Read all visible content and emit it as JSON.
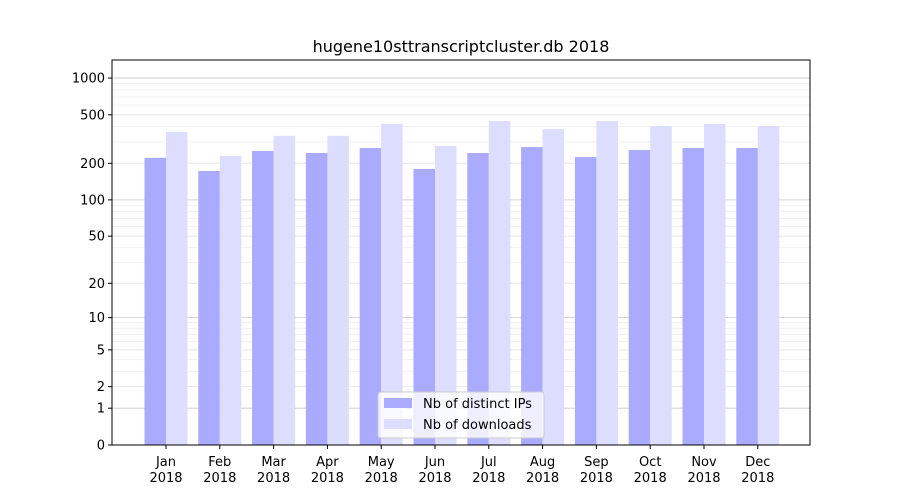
{
  "chart_data": {
    "type": "bar",
    "title": "hugene10sttranscriptcluster.db 2018",
    "xlabel": "",
    "ylabel": "",
    "yscale": "symlog",
    "ylim": [
      0,
      1300
    ],
    "yticks": [
      0,
      1,
      2,
      5,
      10,
      20,
      50,
      100,
      200,
      500,
      1000
    ],
    "ytick_labels": [
      "0",
      "1",
      "2",
      "5",
      "10",
      "20",
      "50",
      "100",
      "200",
      "500",
      "1000"
    ],
    "grid": true,
    "legend_position": "bottom-center",
    "categories": [
      "Jan\n2018",
      "Feb\n2018",
      "Mar\n2018",
      "Apr\n2018",
      "May\n2018",
      "Jun\n2018",
      "Jul\n2018",
      "Aug\n2018",
      "Sep\n2018",
      "Oct\n2018",
      "Nov\n2018",
      "Dec\n2018"
    ],
    "category_labels": [
      [
        "Jan",
        "2018"
      ],
      [
        "Feb",
        "2018"
      ],
      [
        "Mar",
        "2018"
      ],
      [
        "Apr",
        "2018"
      ],
      [
        "May",
        "2018"
      ],
      [
        "Jun",
        "2018"
      ],
      [
        "Jul",
        "2018"
      ],
      [
        "Aug",
        "2018"
      ],
      [
        "Sep",
        "2018"
      ],
      [
        "Oct",
        "2018"
      ],
      [
        "Nov",
        "2018"
      ],
      [
        "Dec",
        "2018"
      ]
    ],
    "series": [
      {
        "name": "Nb of distinct IPs",
        "color": "#aaaaff",
        "values": [
          222,
          173,
          253,
          243,
          267,
          180,
          243,
          272,
          225,
          257,
          267,
          267
        ]
      },
      {
        "name": "Nb of downloads",
        "color": "#ddddff",
        "values": [
          362,
          230,
          336,
          336,
          421,
          278,
          445,
          383,
          445,
          405,
          421,
          405
        ]
      }
    ]
  }
}
